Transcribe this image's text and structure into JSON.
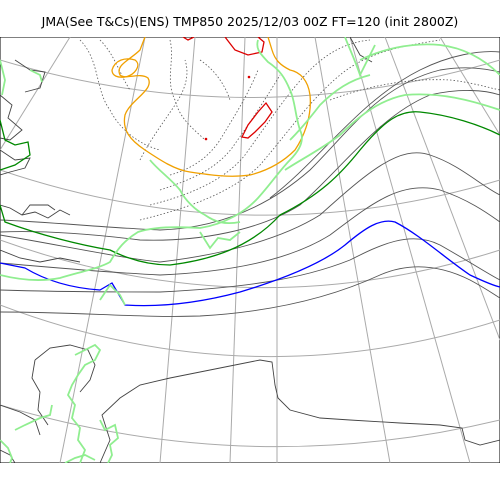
{
  "title": "JMA(See T&Cs)(ENS) TMP850 2025/12/03 00Z FT=120 (init 2800Z)",
  "colors": {
    "coastline": "#444444",
    "graticule": "#aaaaaa",
    "isotherm_thin": "#555555",
    "isotherm_dotted": "#555555",
    "isotherm_minus6_green": "#008800",
    "isotherm_0_blue": "#0000ff",
    "isotherm_minus30_orange": "#f0a000",
    "isotherm_minus36_red": "#dd0000",
    "snowline_lightgreen": "#90ee90"
  }
}
